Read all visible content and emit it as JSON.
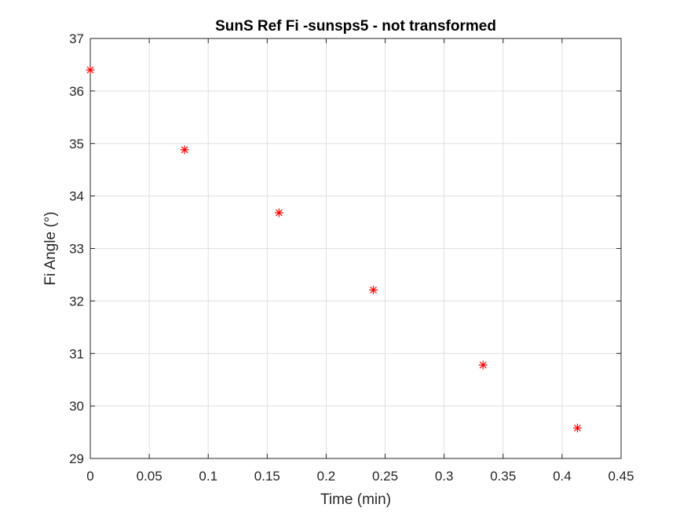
{
  "chart_data": {
    "type": "scatter",
    "title": "SunS Ref Fi -sunsps5 - not transformed",
    "xlabel": "Time (min)",
    "ylabel": "Fi Angle (°)",
    "xlim": [
      0,
      0.45
    ],
    "ylim": [
      29,
      37
    ],
    "xticks": [
      0,
      0.05,
      0.1,
      0.15,
      0.2,
      0.25,
      0.3,
      0.35,
      0.4,
      0.45
    ],
    "xtick_labels": [
      "0",
      "0.05",
      "0.1",
      "0.15",
      "0.2",
      "0.25",
      "0.3",
      "0.35",
      "0.4",
      "0.45"
    ],
    "yticks": [
      29,
      30,
      31,
      32,
      33,
      34,
      35,
      36,
      37
    ],
    "ytick_labels": [
      "29",
      "30",
      "31",
      "32",
      "33",
      "34",
      "35",
      "36",
      "37"
    ],
    "grid": true,
    "marker": "asterisk",
    "marker_color": "#ff0000",
    "series": [
      {
        "x": [
          0,
          0.08,
          0.16,
          0.24,
          0.333,
          0.413
        ],
        "y": [
          36.4,
          34.88,
          33.68,
          32.21,
          30.78,
          29.58
        ]
      }
    ]
  }
}
